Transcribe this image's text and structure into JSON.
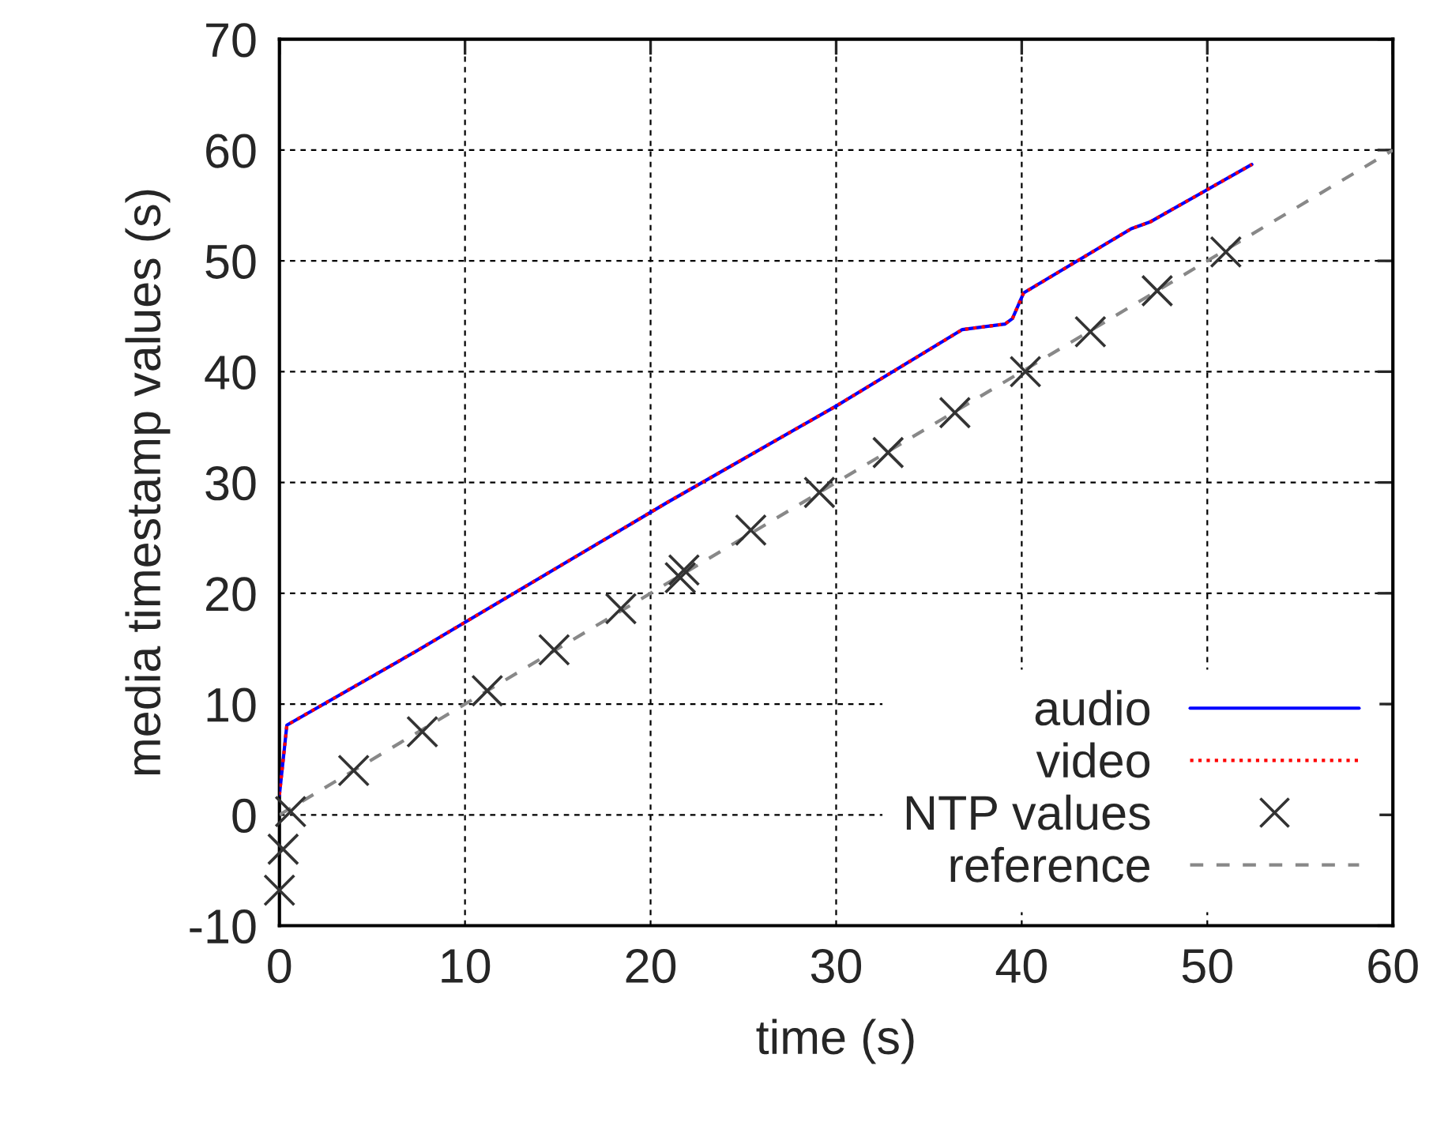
{
  "chart_data": {
    "type": "line",
    "xlabel": "time (s)",
    "ylabel": "media timestamp values (s)",
    "xlim": [
      0,
      60
    ],
    "ylim": [
      -10,
      70
    ],
    "xticks": [
      0,
      10,
      20,
      30,
      40,
      50,
      60
    ],
    "yticks": [
      -10,
      0,
      10,
      20,
      30,
      40,
      50,
      60,
      70
    ],
    "grid": true,
    "legend": "bottom right",
    "series": [
      {
        "name": "audio",
        "color": "#0000ff",
        "line_style": "solid",
        "x": [
          0,
          0.4,
          7.4,
          20.9,
          30.0,
          36.8,
          39.1,
          39.5,
          40.1,
          45.9,
          46.9,
          52.4
        ],
        "values": [
          1.8,
          8.1,
          14.8,
          28.2,
          36.9,
          43.8,
          44.3,
          44.8,
          47.1,
          52.9,
          53.5,
          58.7
        ]
      },
      {
        "name": "video",
        "color": "#ff0000",
        "line_style": "dotted",
        "x": [
          0,
          0.4,
          7.4,
          20.9,
          30.0,
          36.8,
          39.1,
          39.5,
          40.1,
          45.9,
          46.9,
          52.4
        ],
        "values": [
          1.8,
          8.1,
          14.8,
          28.2,
          36.9,
          43.8,
          44.3,
          44.8,
          47.1,
          52.9,
          53.5,
          58.7
        ]
      },
      {
        "name": "NTP values",
        "type": "scatter",
        "color": "#333333",
        "marker": "cross",
        "x": [
          0.0,
          0.2,
          0.6,
          4.0,
          7.7,
          11.2,
          14.8,
          18.4,
          21.6,
          21.8,
          25.4,
          29.1,
          32.8,
          36.4,
          40.2,
          43.7,
          47.3,
          51.0
        ],
        "values": [
          -6.8,
          -3.1,
          0.3,
          4.0,
          7.5,
          11.2,
          14.9,
          18.6,
          21.4,
          22.1,
          25.7,
          29.1,
          32.7,
          36.3,
          40.0,
          43.6,
          47.3,
          50.8
        ]
      },
      {
        "name": "reference",
        "color": "#888888",
        "line_style": "dashed",
        "x": [
          0,
          60
        ],
        "values": [
          0,
          60
        ]
      }
    ]
  }
}
